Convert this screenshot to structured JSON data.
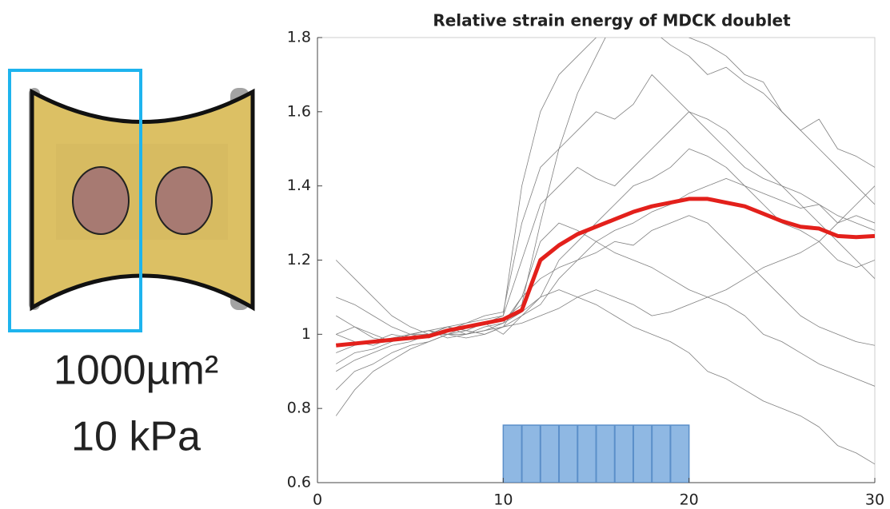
{
  "pattern": {
    "area": "1000µm²",
    "stiffness": "10 kPa"
  },
  "chart_data": {
    "type": "line",
    "title": "Relative strain energy of MDCK doublet",
    "x": [
      1,
      2,
      3,
      4,
      5,
      6,
      7,
      8,
      9,
      10,
      11,
      12,
      13,
      14,
      15,
      16,
      17,
      18,
      19,
      20,
      21,
      22,
      23,
      24,
      25,
      26,
      27,
      28,
      29,
      30
    ],
    "xlim": [
      0,
      30
    ],
    "xticks": [
      0,
      10,
      20,
      30
    ],
    "ylim": [
      0.6,
      1.8
    ],
    "yticks": [
      0.6,
      0.8,
      1,
      1.2,
      1.4,
      1.6,
      1.8
    ],
    "series": [
      {
        "color": "#808080",
        "width": 0.8,
        "values": [
          0.95,
          0.97,
          0.98,
          1.0,
          0.99,
          1.0,
          1.02,
          1.03,
          1.05,
          1.06,
          1.3,
          1.45,
          1.5,
          1.55,
          1.6,
          1.58,
          1.62,
          1.7,
          1.65,
          1.6,
          1.55,
          1.5,
          1.45,
          1.42,
          1.4,
          1.38,
          1.35,
          1.3,
          1.32,
          1.3
        ]
      },
      {
        "color": "#808080",
        "width": 0.8,
        "values": [
          1.05,
          1.02,
          1.0,
          0.98,
          1.0,
          1.01,
          0.99,
          1.0,
          1.02,
          1.03,
          1.1,
          1.15,
          1.18,
          1.2,
          1.22,
          1.25,
          1.24,
          1.28,
          1.3,
          1.32,
          1.3,
          1.25,
          1.2,
          1.15,
          1.1,
          1.05,
          1.02,
          1.0,
          0.98,
          0.97
        ]
      },
      {
        "color": "#808080",
        "width": 0.8,
        "values": [
          0.85,
          0.9,
          0.92,
          0.95,
          0.97,
          0.98,
          1.0,
          1.0,
          1.01,
          1.02,
          1.05,
          1.1,
          1.12,
          1.1,
          1.08,
          1.05,
          1.02,
          1.0,
          0.98,
          0.95,
          0.9,
          0.88,
          0.85,
          0.82,
          0.8,
          0.78,
          0.75,
          0.7,
          0.68,
          0.65
        ]
      },
      {
        "color": "#808080",
        "width": 0.8,
        "values": [
          1.1,
          1.08,
          1.05,
          1.02,
          1.0,
          0.99,
          1.01,
          1.03,
          1.04,
          1.05,
          1.4,
          1.6,
          1.7,
          1.75,
          1.8,
          1.85,
          1.9,
          1.82,
          1.78,
          1.75,
          1.7,
          1.72,
          1.68,
          1.65,
          1.6,
          1.55,
          1.58,
          1.5,
          1.48,
          1.45
        ]
      },
      {
        "color": "#808080",
        "width": 0.8,
        "values": [
          0.92,
          0.95,
          0.96,
          0.98,
          1.0,
          1.0,
          1.01,
          1.02,
          1.03,
          1.0,
          1.05,
          1.08,
          1.15,
          1.2,
          1.25,
          1.28,
          1.3,
          1.33,
          1.35,
          1.38,
          1.4,
          1.42,
          1.4,
          1.38,
          1.36,
          1.34,
          1.35,
          1.32,
          1.3,
          1.28
        ]
      },
      {
        "color": "#808080",
        "width": 0.8,
        "values": [
          1.0,
          1.02,
          0.99,
          0.98,
          1.0,
          1.01,
          1.0,
          0.99,
          1.0,
          1.02,
          1.03,
          1.05,
          1.07,
          1.1,
          1.12,
          1.1,
          1.08,
          1.05,
          1.06,
          1.08,
          1.1,
          1.12,
          1.15,
          1.18,
          1.2,
          1.22,
          1.25,
          1.3,
          1.35,
          1.4
        ]
      },
      {
        "color": "#808080",
        "width": 0.8,
        "values": [
          0.78,
          0.85,
          0.9,
          0.93,
          0.96,
          0.98,
          1.0,
          1.02,
          1.03,
          1.05,
          1.2,
          1.35,
          1.4,
          1.45,
          1.42,
          1.4,
          1.45,
          1.5,
          1.55,
          1.6,
          1.58,
          1.55,
          1.5,
          1.45,
          1.4,
          1.35,
          1.3,
          1.25,
          1.2,
          1.15
        ]
      },
      {
        "color": "#808080",
        "width": 0.8,
        "values": [
          1.2,
          1.15,
          1.1,
          1.05,
          1.02,
          1.0,
          1.0,
          1.01,
          1.0,
          1.02,
          1.1,
          1.25,
          1.3,
          1.28,
          1.25,
          1.22,
          1.2,
          1.18,
          1.15,
          1.12,
          1.1,
          1.08,
          1.05,
          1.0,
          0.98,
          0.95,
          0.92,
          0.9,
          0.88,
          0.86
        ]
      },
      {
        "color": "#808080",
        "width": 0.8,
        "values": [
          0.9,
          0.93,
          0.95,
          0.97,
          0.98,
          1.0,
          1.02,
          1.01,
          1.03,
          1.04,
          1.08,
          1.3,
          1.5,
          1.65,
          1.75,
          1.85,
          1.9,
          1.88,
          1.85,
          1.8,
          1.78,
          1.75,
          1.7,
          1.68,
          1.6,
          1.55,
          1.5,
          1.45,
          1.4,
          1.35
        ]
      },
      {
        "color": "#808080",
        "width": 0.8,
        "values": [
          1.0,
          0.98,
          0.97,
          0.99,
          1.0,
          1.01,
          1.02,
          1.0,
          1.01,
          1.03,
          1.06,
          1.1,
          1.2,
          1.25,
          1.3,
          1.35,
          1.4,
          1.42,
          1.45,
          1.5,
          1.48,
          1.45,
          1.4,
          1.35,
          1.3,
          1.28,
          1.25,
          1.2,
          1.18,
          1.2
        ]
      },
      {
        "color": "#e3201b",
        "width": 5,
        "values": [
          0.97,
          0.975,
          0.98,
          0.985,
          0.99,
          0.995,
          1.01,
          1.02,
          1.03,
          1.04,
          1.065,
          1.2,
          1.24,
          1.27,
          1.29,
          1.31,
          1.33,
          1.345,
          1.355,
          1.365,
          1.365,
          1.355,
          1.345,
          1.325,
          1.305,
          1.29,
          1.285,
          1.265,
          1.262,
          1.265
        ]
      }
    ],
    "stimulation": {
      "color": "#8fb8e3",
      "line_color": "#5b8fc9",
      "height": 0.755,
      "pulses": [
        10,
        11,
        12,
        13,
        14,
        15,
        16,
        17,
        18,
        19,
        20
      ]
    }
  }
}
